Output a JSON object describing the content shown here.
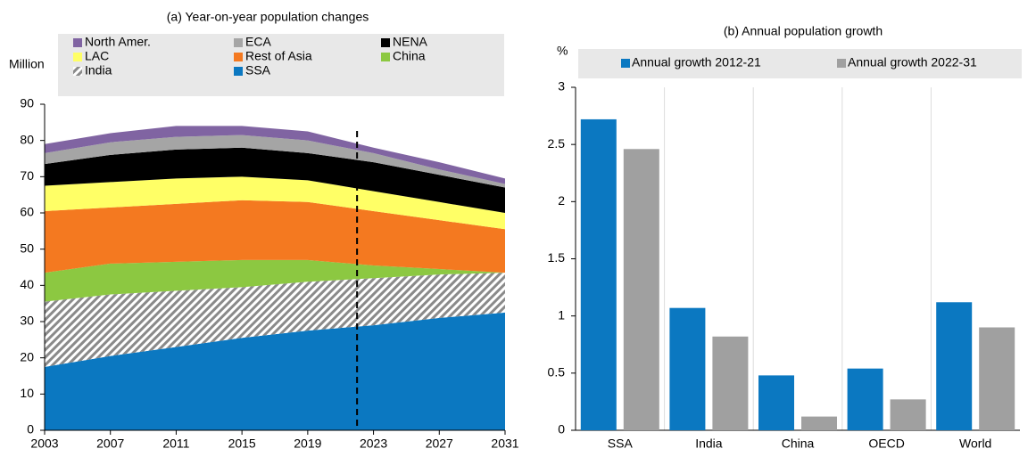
{
  "chart_data": [
    {
      "type": "area",
      "title": "(a) Year-on-year population changes",
      "ylabel": "Million",
      "x": [
        2003,
        2007,
        2011,
        2015,
        2019,
        2023,
        2027,
        2031
      ],
      "xlim": [
        2003,
        2031
      ],
      "xticks": [
        2003,
        2007,
        2011,
        2015,
        2019,
        2023,
        2027,
        2031
      ],
      "ylim": [
        0,
        90
      ],
      "yticks": [
        0,
        10,
        20,
        30,
        40,
        50,
        60,
        70,
        80,
        90
      ],
      "vline": 2022,
      "series": [
        {
          "name": "North Amer.",
          "color": "#8064a2",
          "values": [
            2.5,
            2.5,
            3,
            2.5,
            2.5,
            1.5,
            2,
            1.5
          ]
        },
        {
          "name": "ECA",
          "color": "#a5a5a5",
          "values": [
            3,
            3.5,
            3.5,
            3.5,
            3.5,
            2.5,
            1.5,
            1
          ]
        },
        {
          "name": "NENA",
          "color": "#000000",
          "values": [
            6,
            7.5,
            8,
            8,
            7.5,
            8,
            7.5,
            7
          ]
        },
        {
          "name": "LAC",
          "color": "#ffff66",
          "values": [
            7,
            7,
            7,
            6.5,
            6,
            5.5,
            5,
            4.5
          ]
        },
        {
          "name": "Rest of Asia",
          "color": "#f47920",
          "values": [
            17,
            15.5,
            16,
            16.5,
            16,
            15,
            13.5,
            12
          ]
        },
        {
          "name": "China",
          "color": "#8cc841",
          "values": [
            8,
            8.5,
            8,
            7.5,
            6,
            3.5,
            1.5,
            0
          ]
        },
        {
          "name": "India",
          "color": "#8a8a8a",
          "hatch": true,
          "values": [
            18,
            17,
            15.5,
            14,
            13.5,
            13,
            12,
            11
          ]
        },
        {
          "name": "SSA",
          "color": "#0b78c1",
          "values": [
            17.5,
            20.5,
            23,
            25.5,
            27.5,
            29,
            31,
            32.5
          ]
        }
      ]
    },
    {
      "type": "bar",
      "title": "(b) Annual population growth",
      "ylabel": "%",
      "categories": [
        "SSA",
        "India",
        "China",
        "OECD",
        "World"
      ],
      "ylim": [
        0,
        3
      ],
      "yticks": [
        0,
        0.5,
        1,
        1.5,
        2,
        2.5,
        3
      ],
      "series": [
        {
          "name": "Annual growth 2012-21",
          "color": "#0b78c1",
          "values": [
            2.72,
            1.07,
            0.48,
            0.54,
            1.12
          ]
        },
        {
          "name": "Annual growth 2022-31",
          "color": "#a0a0a0",
          "values": [
            2.46,
            0.82,
            0.12,
            0.27,
            0.9
          ]
        }
      ]
    }
  ]
}
